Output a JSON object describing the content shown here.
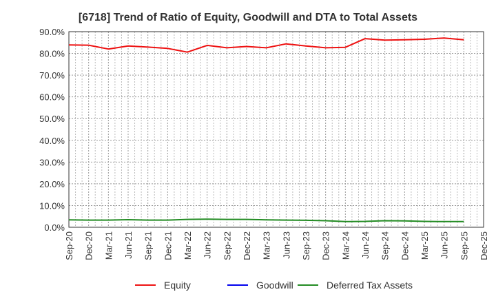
{
  "chart_data": {
    "type": "line",
    "title": "[6718]  Trend of Ratio of Equity, Goodwill and DTA to Total Assets",
    "xlabel": "",
    "ylabel": "",
    "ylim": [
      0,
      90
    ],
    "yticks": [
      "0.0%",
      "10.0%",
      "20.0%",
      "30.0%",
      "40.0%",
      "50.0%",
      "60.0%",
      "70.0%",
      "80.0%",
      "90.0%"
    ],
    "ytick_values": [
      0,
      10,
      20,
      30,
      40,
      50,
      60,
      70,
      80,
      90
    ],
    "grid": true,
    "legend_position": "bottom",
    "categories": [
      "Sep-20",
      "Dec-20",
      "Mar-21",
      "Jun-21",
      "Sep-21",
      "Dec-21",
      "Mar-22",
      "Jun-22",
      "Sep-22",
      "Dec-22",
      "Mar-23",
      "Jun-23",
      "Sep-23",
      "Dec-23",
      "Mar-24",
      "Jun-24",
      "Sep-24",
      "Dec-24",
      "Mar-25",
      "Jun-25",
      "Sep-25",
      "Dec-25"
    ],
    "series": [
      {
        "name": "Equity",
        "color": "#ee1111",
        "values": [
          83.9,
          83.8,
          82.0,
          83.4,
          82.9,
          82.3,
          80.6,
          83.7,
          82.6,
          83.2,
          82.6,
          84.4,
          83.4,
          82.6,
          82.8,
          86.8,
          86.1,
          86.3,
          86.5,
          87.1,
          86.3,
          null
        ]
      },
      {
        "name": "Goodwill",
        "color": "#0000ee",
        "values": [
          null,
          null,
          null,
          null,
          null,
          null,
          null,
          null,
          null,
          null,
          null,
          null,
          null,
          null,
          null,
          null,
          null,
          null,
          null,
          null,
          null,
          null
        ]
      },
      {
        "name": "Deferred Tax Assets",
        "color": "#228b22",
        "values": [
          3.4,
          3.3,
          3.3,
          3.5,
          3.3,
          3.3,
          3.6,
          3.7,
          3.6,
          3.6,
          3.4,
          3.3,
          3.2,
          3.0,
          2.6,
          2.7,
          3.0,
          2.9,
          2.7,
          2.6,
          2.6,
          null
        ]
      }
    ]
  }
}
